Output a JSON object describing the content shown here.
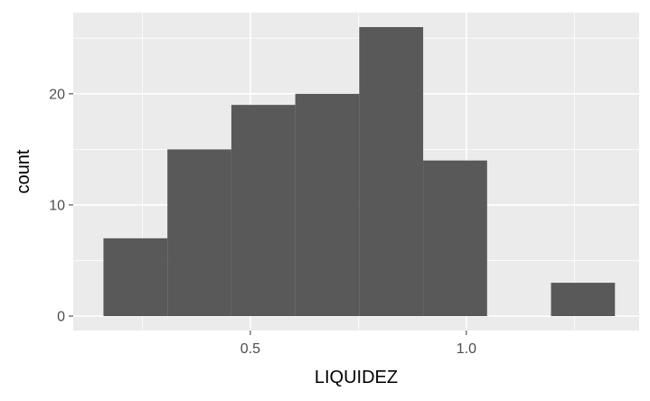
{
  "chart_data": {
    "type": "bar",
    "xlabel": "LIQUIDEZ",
    "ylabel": "count",
    "x_ticks": [
      0.5,
      1.0
    ],
    "x_tick_labels": [
      "0.5",
      "1.0"
    ],
    "y_ticks": [
      0,
      10,
      20
    ],
    "y_tick_labels": [
      "0",
      "10",
      "20"
    ],
    "xlim": [
      0.09,
      1.4
    ],
    "ylim": [
      -1.3,
      27.3
    ],
    "grid": true,
    "bins": [
      {
        "x0": 0.16,
        "x1": 0.308,
        "count": 7
      },
      {
        "x0": 0.308,
        "x1": 0.456,
        "count": 15
      },
      {
        "x0": 0.456,
        "x1": 0.604,
        "count": 19
      },
      {
        "x0": 0.604,
        "x1": 0.752,
        "count": 20
      },
      {
        "x0": 0.752,
        "x1": 0.9,
        "count": 26
      },
      {
        "x0": 0.9,
        "x1": 1.048,
        "count": 14
      },
      {
        "x0": 1.048,
        "x1": 1.196,
        "count": 0
      },
      {
        "x0": 1.196,
        "x1": 1.344,
        "count": 3
      }
    ],
    "colors": {
      "bar": "#595959",
      "panel": "#ebebeb",
      "grid": "#ffffff"
    }
  }
}
